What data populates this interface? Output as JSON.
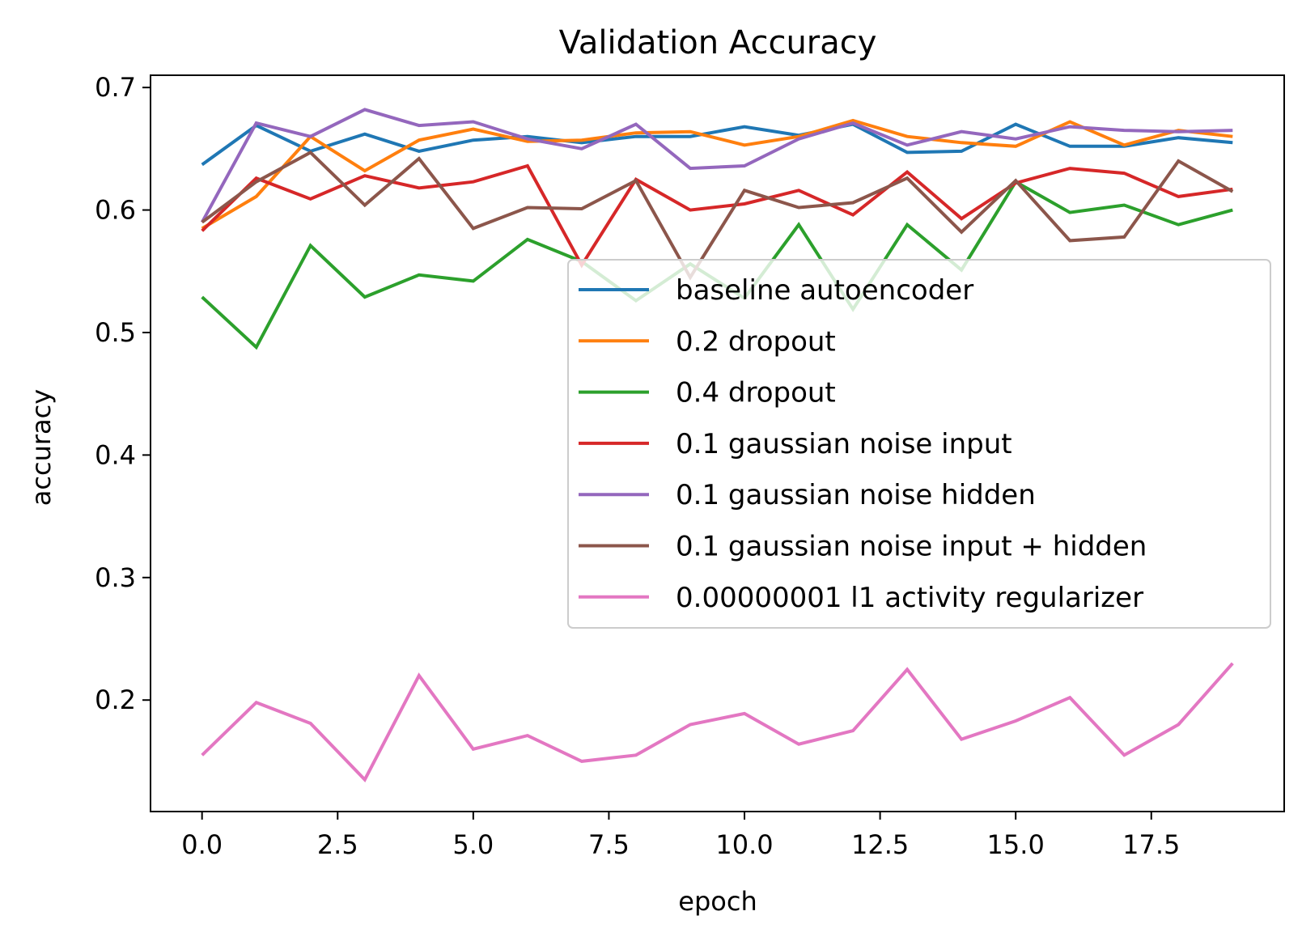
{
  "chart_data": {
    "type": "line",
    "title": "Validation Accuracy",
    "xlabel": "epoch",
    "ylabel": "accuracy",
    "xlim": [
      -0.95,
      19.95
    ],
    "ylim": [
      0.109,
      0.71
    ],
    "xticks": [
      0.0,
      2.5,
      5.0,
      7.5,
      10.0,
      12.5,
      15.0,
      17.5
    ],
    "xtick_labels": [
      "0.0",
      "2.5",
      "5.0",
      "7.5",
      "10.0",
      "12.5",
      "15.0",
      "17.5"
    ],
    "yticks": [
      0.2,
      0.3,
      0.4,
      0.5,
      0.6,
      0.7
    ],
    "ytick_labels": [
      "0.2",
      "0.3",
      "0.4",
      "0.5",
      "0.6",
      "0.7"
    ],
    "grid": false,
    "legend_position": "center-right",
    "x": [
      0,
      1,
      2,
      3,
      4,
      5,
      6,
      7,
      8,
      9,
      10,
      11,
      12,
      13,
      14,
      15,
      16,
      17,
      18,
      19
    ],
    "series": [
      {
        "name": "baseline autoencoder",
        "color": "#1f77b4",
        "values": [
          0.637,
          0.669,
          0.648,
          0.662,
          0.648,
          0.657,
          0.66,
          0.655,
          0.66,
          0.66,
          0.668,
          0.661,
          0.67,
          0.647,
          0.648,
          0.67,
          0.652,
          0.652,
          0.659,
          0.655
        ]
      },
      {
        "name": "0.2 dropout",
        "color": "#ff7f0e",
        "values": [
          0.585,
          0.611,
          0.66,
          0.632,
          0.657,
          0.666,
          0.656,
          0.657,
          0.663,
          0.664,
          0.653,
          0.66,
          0.673,
          0.66,
          0.655,
          0.652,
          0.672,
          0.653,
          0.665,
          0.66
        ]
      },
      {
        "name": "0.4 dropout",
        "color": "#2ca02c",
        "values": [
          0.529,
          0.488,
          0.571,
          0.529,
          0.547,
          0.542,
          0.576,
          0.558,
          0.526,
          0.556,
          0.528,
          0.588,
          0.519,
          0.588,
          0.551,
          0.623,
          0.598,
          0.604,
          0.588,
          0.6
        ]
      },
      {
        "name": "0.1 gaussian noise input",
        "color": "#d62728",
        "values": [
          0.583,
          0.626,
          0.609,
          0.628,
          0.618,
          0.623,
          0.636,
          0.555,
          0.625,
          0.6,
          0.605,
          0.616,
          0.596,
          0.631,
          0.593,
          0.622,
          0.634,
          0.63,
          0.611,
          0.617
        ]
      },
      {
        "name": "0.1 gaussian noise hidden",
        "color": "#9467bd",
        "values": [
          0.59,
          0.671,
          0.66,
          0.682,
          0.669,
          0.672,
          0.658,
          0.65,
          0.67,
          0.634,
          0.636,
          0.658,
          0.671,
          0.653,
          0.664,
          0.658,
          0.668,
          0.665,
          0.664,
          0.665
        ]
      },
      {
        "name": "0.1 gaussian noise input + hidden",
        "color": "#8c564b",
        "values": [
          0.59,
          0.623,
          0.647,
          0.604,
          0.642,
          0.585,
          0.602,
          0.601,
          0.624,
          0.545,
          0.616,
          0.602,
          0.606,
          0.626,
          0.582,
          0.624,
          0.575,
          0.578,
          0.64,
          0.615
        ]
      },
      {
        "name": "0.00000001 l1 activity regularizer",
        "color": "#e377c2",
        "values": [
          0.155,
          0.198,
          0.181,
          0.135,
          0.22,
          0.16,
          0.171,
          0.15,
          0.155,
          0.18,
          0.189,
          0.164,
          0.175,
          0.225,
          0.168,
          0.183,
          0.202,
          0.155,
          0.18,
          0.23
        ]
      }
    ]
  }
}
